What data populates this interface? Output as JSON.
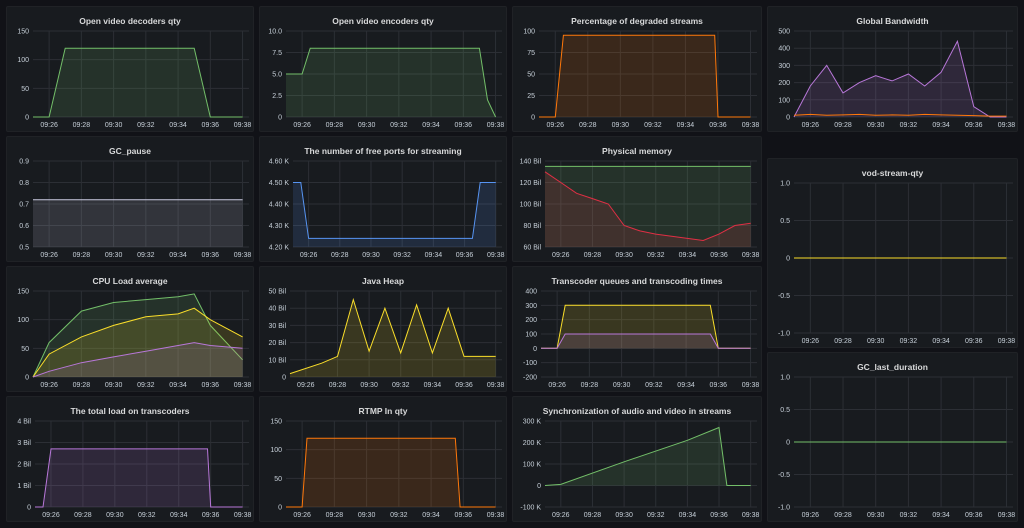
{
  "colors": {
    "green": "#73bf69",
    "yellow": "#fade2a",
    "orange": "#ff780a",
    "purple": "#b877d9",
    "blue": "#5794f2",
    "red": "#e02f44",
    "grey": "#c9c9e0"
  },
  "time_ticks": [
    "09:26",
    "09:28",
    "09:30",
    "09:32",
    "09:34",
    "09:36",
    "09:38"
  ],
  "panels": [
    {
      "id": "decoders",
      "title": "Open video decoders qty",
      "yticks": [
        "150",
        "100",
        "50",
        "0"
      ],
      "yvals": [
        150,
        100,
        50,
        0
      ]
    },
    {
      "id": "encoders",
      "title": "Open video encoders qty",
      "yticks": [
        "10.0",
        "7.5",
        "5.0",
        "2.5",
        "0"
      ],
      "yvals": [
        10,
        7.5,
        5,
        2.5,
        0
      ]
    },
    {
      "id": "degraded",
      "title": "Percentage of degraded streams",
      "yticks": [
        "100",
        "75",
        "50",
        "25",
        "0"
      ],
      "yvals": [
        100,
        75,
        50,
        25,
        0
      ]
    },
    {
      "id": "bandwidth",
      "title": "Global Bandwidth",
      "yticks": [
        "500",
        "400",
        "300",
        "200",
        "100",
        "0"
      ],
      "yvals": [
        500,
        400,
        300,
        200,
        100,
        0
      ]
    },
    {
      "id": "gcpause",
      "title": "GC_pause",
      "yticks": [
        "0.9",
        "0.8",
        "0.7",
        "0.6",
        "0.5"
      ],
      "yvals": [
        0.9,
        0.8,
        0.7,
        0.6,
        0.5
      ]
    },
    {
      "id": "ports",
      "title": "The number of free ports for streaming",
      "yticks": [
        "4.60 K",
        "4.50 K",
        "4.40 K",
        "4.30 K",
        "4.20 K"
      ],
      "yvals": [
        4600,
        4500,
        4400,
        4300,
        4200
      ]
    },
    {
      "id": "memory",
      "title": "Physical memory",
      "yticks": [
        "140 Bil",
        "120 Bil",
        "100 Bil",
        "80 Bil",
        "60 Bil"
      ],
      "yvals": [
        140,
        120,
        100,
        80,
        60
      ]
    },
    {
      "id": "vodqty",
      "title": "vod-stream-qty",
      "yticks": [
        "1.0",
        "0.5",
        "0",
        "-0.5",
        "-1.0"
      ],
      "yvals": [
        1,
        0.5,
        0,
        -0.5,
        -1
      ]
    },
    {
      "id": "cpu",
      "title": "CPU Load average",
      "yticks": [
        "150",
        "100",
        "50",
        "0"
      ],
      "yvals": [
        150,
        100,
        50,
        0
      ]
    },
    {
      "id": "heap",
      "title": "Java Heap",
      "yticks": [
        "50 Bil",
        "40 Bil",
        "30 Bil",
        "20 Bil",
        "10 Bil",
        "0"
      ],
      "yvals": [
        50,
        40,
        30,
        20,
        10,
        0
      ]
    },
    {
      "id": "queues",
      "title": "Transcoder queues and transcoding times",
      "yticks": [
        "400",
        "300",
        "200",
        "100",
        "0",
        "-100",
        "-200"
      ],
      "yvals": [
        400,
        300,
        200,
        100,
        0,
        -100,
        -200
      ]
    },
    {
      "id": "gclast",
      "title": "GC_last_duration",
      "yticks": [
        "1.0",
        "0.5",
        "0",
        "-0.5",
        "-1.0"
      ],
      "yvals": [
        1,
        0.5,
        0,
        -0.5,
        -1
      ]
    },
    {
      "id": "transload",
      "title": "The total load on transcoders",
      "yticks": [
        "4 Bil",
        "3 Bil",
        "2 Bil",
        "1 Bil",
        "0"
      ],
      "yvals": [
        4,
        3,
        2,
        1,
        0
      ]
    },
    {
      "id": "rtmp",
      "title": "RTMP In qty",
      "yticks": [
        "150",
        "100",
        "50",
        "0"
      ],
      "yvals": [
        150,
        100,
        50,
        0
      ]
    },
    {
      "id": "avsync",
      "title": "Synchronization of audio and video in streams",
      "yticks": [
        "300 K",
        "200 K",
        "100 K",
        "0",
        "-100 K"
      ],
      "yvals": [
        300,
        200,
        100,
        0,
        -100
      ]
    }
  ],
  "chart_data": [
    {
      "type": "line",
      "title": "Open video decoders qty",
      "x": [
        "09:25",
        "09:26",
        "09:27",
        "09:35",
        "09:36",
        "09:38"
      ],
      "series": [
        {
          "values": [
            0,
            0,
            120,
            120,
            0,
            0
          ]
        }
      ],
      "ylim": [
        0,
        150
      ]
    },
    {
      "type": "line",
      "title": "Open video encoders qty",
      "x": [
        "09:25",
        "09:26",
        "09:26.5",
        "09:37",
        "09:37.5",
        "09:38"
      ],
      "series": [
        {
          "values": [
            5,
            5,
            8,
            8,
            2,
            0
          ]
        }
      ],
      "ylim": [
        0,
        10
      ]
    },
    {
      "type": "line",
      "title": "Percentage of degraded streams",
      "x": [
        "09:25",
        "09:26",
        "09:26.5",
        "09:35.8",
        "09:36",
        "09:38"
      ],
      "series": [
        {
          "values": [
            0,
            0,
            95,
            95,
            0,
            0
          ]
        }
      ],
      "ylim": [
        0,
        100
      ]
    },
    {
      "type": "line",
      "title": "Global Bandwidth",
      "x": [
        "09:25",
        "09:26",
        "09:27",
        "09:28",
        "09:29",
        "09:30",
        "09:31",
        "09:32",
        "09:33",
        "09:34",
        "09:35",
        "09:36",
        "09:37",
        "09:38"
      ],
      "series": [
        {
          "values": [
            0,
            180,
            300,
            140,
            200,
            240,
            210,
            250,
            180,
            260,
            440,
            60,
            0,
            0
          ]
        },
        {
          "values": [
            10,
            15,
            10,
            12,
            15,
            10,
            12,
            10,
            15,
            12,
            10,
            8,
            5,
            5
          ]
        }
      ],
      "ylim": [
        0,
        500
      ]
    },
    {
      "type": "area",
      "title": "GC_pause",
      "x": [
        "09:25",
        "09:38"
      ],
      "series": [
        {
          "values": [
            0.72,
            0.72
          ]
        }
      ],
      "ylim": [
        0.5,
        0.9
      ]
    },
    {
      "type": "line",
      "title": "The number of free ports for streaming",
      "x": [
        "09:25",
        "09:25.5",
        "09:26",
        "09:36.5",
        "09:37",
        "09:38"
      ],
      "series": [
        {
          "values": [
            4500,
            4500,
            4240,
            4240,
            4500,
            4500
          ]
        }
      ],
      "ylim": [
        4200,
        4600
      ]
    },
    {
      "type": "line",
      "title": "Physical memory",
      "x": [
        "09:25",
        "09:26",
        "09:27",
        "09:28",
        "09:29",
        "09:30",
        "09:31",
        "09:32",
        "09:33",
        "09:34",
        "09:35",
        "09:36",
        "09:37",
        "09:38"
      ],
      "series": [
        {
          "values": [
            135,
            135,
            135,
            135,
            135,
            135,
            135,
            135,
            135,
            135,
            135,
            135,
            135,
            135
          ]
        },
        {
          "values": [
            130,
            120,
            110,
            105,
            100,
            80,
            75,
            72,
            70,
            68,
            66,
            72,
            80,
            82
          ]
        }
      ],
      "ylim": [
        60,
        140
      ]
    },
    {
      "type": "line",
      "title": "vod-stream-qty",
      "x": [
        "09:25",
        "09:38"
      ],
      "series": [
        {
          "values": [
            0,
            0
          ]
        }
      ],
      "ylim": [
        -1,
        1
      ]
    },
    {
      "type": "line",
      "title": "CPU Load average",
      "x": [
        "09:25",
        "09:26",
        "09:28",
        "09:30",
        "09:32",
        "09:34",
        "09:35",
        "09:36",
        "09:38"
      ],
      "series": [
        {
          "values": [
            0,
            60,
            115,
            130,
            135,
            140,
            145,
            90,
            30
          ]
        },
        {
          "values": [
            0,
            40,
            70,
            90,
            105,
            110,
            120,
            100,
            70
          ]
        },
        {
          "values": [
            0,
            10,
            25,
            35,
            45,
            55,
            60,
            55,
            50
          ]
        }
      ],
      "ylim": [
        0,
        150
      ]
    },
    {
      "type": "line",
      "title": "Java Heap",
      "x": [
        "09:25",
        "09:27",
        "09:28",
        "09:29",
        "09:30",
        "09:31",
        "09:32",
        "09:33",
        "09:34",
        "09:35",
        "09:36",
        "09:37",
        "09:38"
      ],
      "series": [
        {
          "values": [
            2,
            8,
            12,
            45,
            15,
            40,
            14,
            42,
            14,
            40,
            12,
            12,
            12
          ]
        }
      ],
      "ylim": [
        0,
        50
      ]
    },
    {
      "type": "line",
      "title": "Transcoder queues and transcoding times",
      "x": [
        "09:25",
        "09:26",
        "09:26.5",
        "09:35.5",
        "09:36",
        "09:38"
      ],
      "series": [
        {
          "values": [
            0,
            0,
            300,
            300,
            0,
            0
          ]
        },
        {
          "values": [
            0,
            0,
            100,
            100,
            0,
            0
          ]
        }
      ],
      "ylim": [
        -200,
        400
      ]
    },
    {
      "type": "line",
      "title": "GC_last_duration",
      "x": [
        "09:25",
        "09:38"
      ],
      "series": [
        {
          "values": [
            0,
            0
          ]
        }
      ],
      "ylim": [
        -1,
        1
      ]
    },
    {
      "type": "line",
      "title": "The total load on transcoders",
      "x": [
        "09:25",
        "09:25.5",
        "09:26",
        "09:35.8",
        "09:36",
        "09:38"
      ],
      "series": [
        {
          "values": [
            0,
            0,
            2.7,
            2.7,
            0,
            0
          ]
        }
      ],
      "ylim": [
        0,
        4
      ]
    },
    {
      "type": "line",
      "title": "RTMP In qty",
      "x": [
        "09:25",
        "09:26",
        "09:26.3",
        "09:35.5",
        "09:35.8",
        "09:38"
      ],
      "series": [
        {
          "values": [
            0,
            0,
            120,
            120,
            0,
            0
          ]
        }
      ],
      "ylim": [
        0,
        150
      ]
    },
    {
      "type": "line",
      "title": "Synchronization of audio and video in streams",
      "x": [
        "09:25",
        "09:26",
        "09:30",
        "09:34",
        "09:36",
        "09:36.5",
        "09:38"
      ],
      "series": [
        {
          "values": [
            0,
            5,
            110,
            210,
            270,
            0,
            0
          ]
        }
      ],
      "ylim": [
        -100,
        300
      ]
    }
  ]
}
